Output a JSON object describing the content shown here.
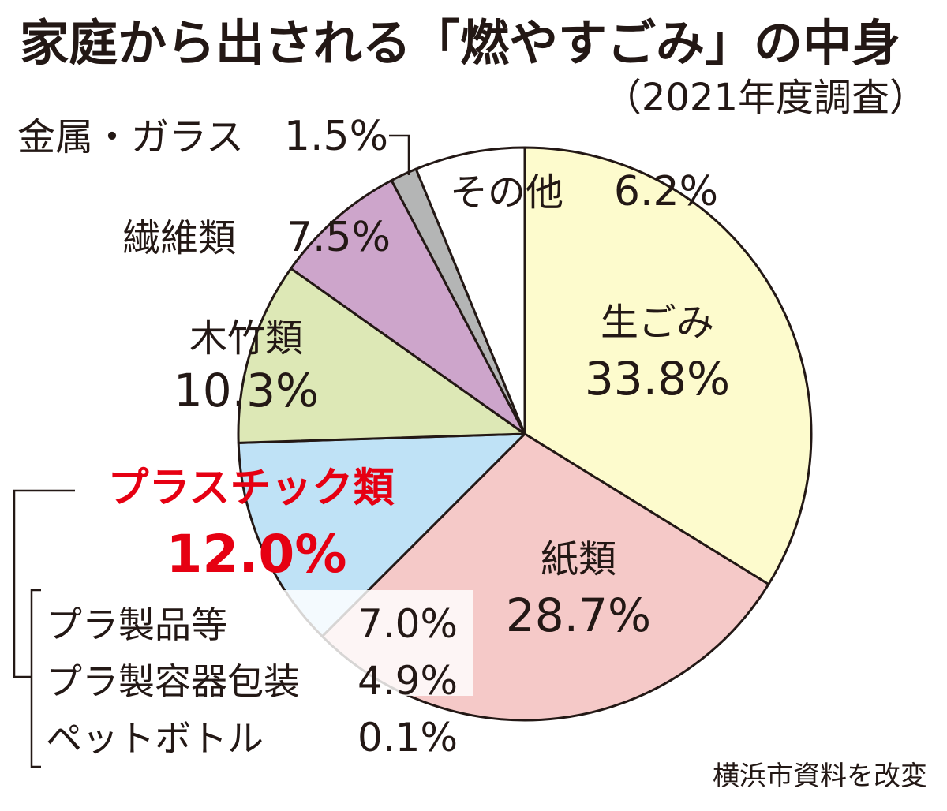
{
  "chart_data": {
    "type": "pie",
    "title": "家庭から出される「燃やすごみ」の中身",
    "subtitle": "（2021年度調査）",
    "source": "横浜市資料を改変",
    "unit": "%",
    "slices": [
      {
        "label": "生ごみ",
        "value": 33.8,
        "value_text": "33.8%",
        "color": "#fdfbcd"
      },
      {
        "label": "紙類",
        "value": 28.7,
        "value_text": "28.7%",
        "color": "#f5c9c8"
      },
      {
        "label": "プラスチック類",
        "value": 12.0,
        "value_text": "12.0%",
        "color": "#bfe2f6",
        "highlight_color": "#e60012"
      },
      {
        "label": "木竹類",
        "value": 10.3,
        "value_text": "10.3%",
        "color": "#dde8b6"
      },
      {
        "label": "繊維類",
        "value": 7.5,
        "value_text": "7.5%",
        "color": "#cda5cb"
      },
      {
        "label": "金属・ガラス",
        "value": 1.5,
        "value_text": "1.5%",
        "color": "#b4b5b5"
      },
      {
        "label": "その他",
        "value": 6.2,
        "value_text": "6.2%",
        "color": "#ffffff"
      }
    ],
    "plastic_breakdown": [
      {
        "label": "プラ製品等",
        "value": 7.0,
        "value_text": "7.0%"
      },
      {
        "label": "プラ製容器包装",
        "value": 4.9,
        "value_text": "4.9%"
      },
      {
        "label": "ペットボトル",
        "value": 0.1,
        "value_text": "0.1%"
      }
    ]
  }
}
